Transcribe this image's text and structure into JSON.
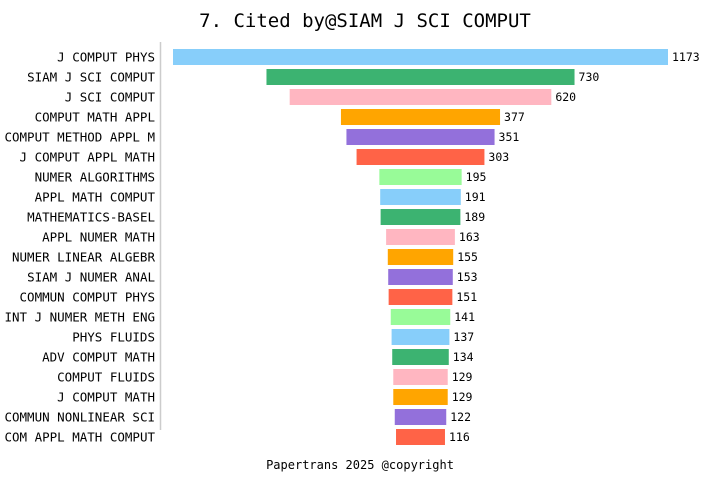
{
  "chart_data": {
    "type": "bar",
    "orientation": "horizontal-centered",
    "title": "7. Cited by@SIAM J SCI COMPUT",
    "footer": "Papertrans 2025 @copyright",
    "categories": [
      "J COMPUT PHYS",
      "SIAM J SCI COMPUT",
      "J SCI COMPUT",
      "COMPUT MATH APPL",
      "COMPUT METHOD APPL M",
      "J COMPUT APPL MATH",
      "NUMER ALGORITHMS",
      "APPL MATH COMPUT",
      "MATHEMATICS-BASEL",
      "APPL NUMER MATH",
      "NUMER LINEAR ALGEBR",
      "SIAM J NUMER ANAL",
      "COMMUN COMPUT PHYS",
      "INT J NUMER METH ENG",
      "PHYS FLUIDS",
      "ADV COMPUT MATH",
      "COMPUT FLUIDS",
      "J COMPUT MATH",
      "COMMUN NONLINEAR SCI",
      "COM APPL MATH COMPUT"
    ],
    "values": [
      1173,
      730,
      620,
      377,
      351,
      303,
      195,
      191,
      189,
      163,
      155,
      153,
      151,
      141,
      137,
      134,
      129,
      129,
      122,
      116
    ],
    "colors": [
      "#87CEFA",
      "#3CB371",
      "#FFB6C1",
      "#FFA500",
      "#9370DB",
      "#FF6347",
      "#98FB98"
    ],
    "grid": false
  }
}
